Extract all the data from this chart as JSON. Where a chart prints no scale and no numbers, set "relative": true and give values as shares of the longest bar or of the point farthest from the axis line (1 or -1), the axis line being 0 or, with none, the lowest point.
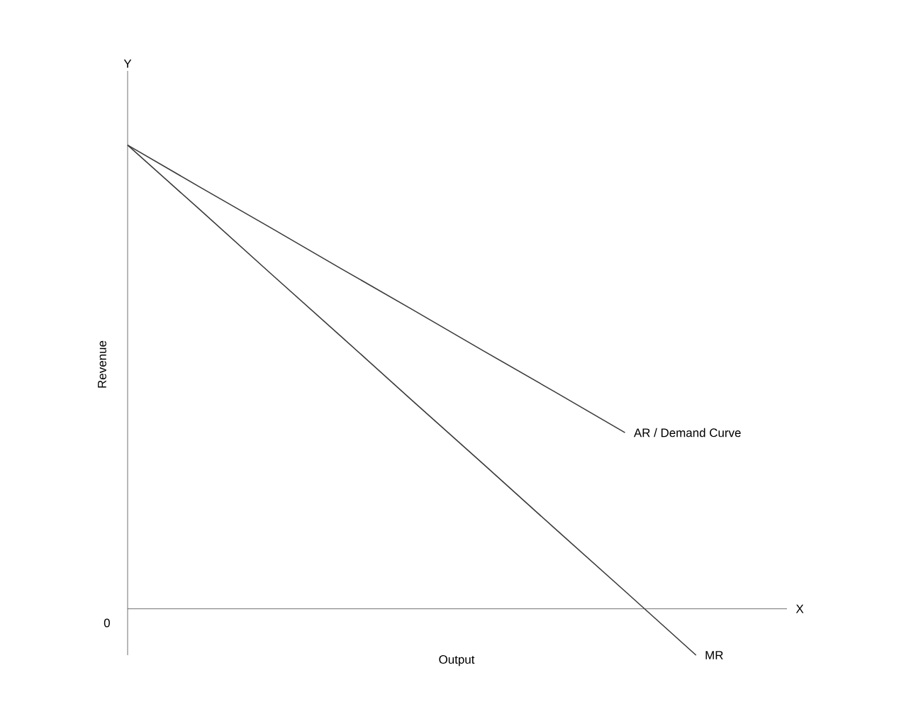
{
  "chart_data": {
    "type": "line",
    "relative": true,
    "xlabel": "Output",
    "ylabel": "Revenue",
    "annotations": [
      "Y",
      "X",
      "0"
    ],
    "categories": [
      null,
      null,
      null,
      null,
      null,
      null,
      null,
      null,
      null
    ],
    "series": [
      {
        "name": "AR / Demand Curve",
        "color": "#3a3a3a",
        "values": [
          1,
          0.911,
          0.823,
          0.734,
          0.646,
          0.557,
          0.469,
          0.38,
          null
        ]
      },
      {
        "name": "MR",
        "color": "#3a3a3a",
        "values": [
          1,
          0.863,
          0.725,
          0.588,
          0.45,
          0.313,
          0.175,
          0.038,
          -0.1
        ]
      }
    ],
    "marker": "none",
    "line_style": "solid",
    "legend": false
  }
}
